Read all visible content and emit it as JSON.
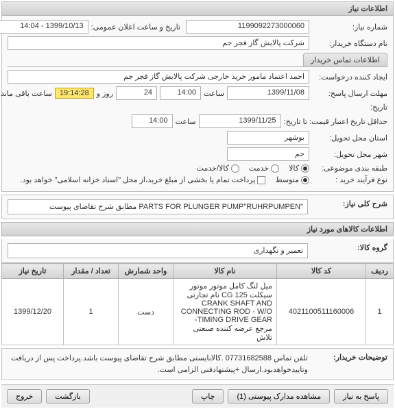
{
  "panel_info": {
    "title": "اطلاعات نیاز",
    "req_no_label": "شماره نیاز:",
    "req_no": "1199092273000060",
    "announce_label": "تاریخ و ساعت اعلان عمومی:",
    "announce_value": "1399/10/13 - 14:04",
    "buyer_label": "نام دستگاه خریدار:",
    "buyer_value": "شرکت پالایش گاز فجر جم",
    "tab_label": "اطلاعات تماس خریدار",
    "creator_label": "ایجاد کننده درخواست:",
    "creator_value": "احمد اعتماد مامور خرید خارجی شرکت پالایش گاز فجر جم",
    "deadline_label": "مهلت ارسال پاسخ:",
    "deadline_date": "1399/11/08",
    "time_label": "ساعت",
    "deadline_time": "14:00",
    "days_count": "24",
    "days_suffix": "روز و",
    "countdown": "19:14:28",
    "remain_suffix": "ساعت باقی مانده",
    "hist_label": "تاریخ:",
    "validity_label": "حداقل تاریخ اعتبار قیمت: تا تاریخ:",
    "validity_date": "1399/11/25",
    "validity_time": "14:00",
    "deliver_prov_label": "استان محل تحویل:",
    "deliver_prov": "بوشهر",
    "deliver_city_label": "شهر محل تحویل:",
    "deliver_city": "جم",
    "category_label": "طبقه بندی موضوعی:",
    "cat_goods": "کالا",
    "cat_service": "خدمت",
    "cat_goods_service": "کالا/خدمت",
    "process_label": "نوع فرآیند خرید :",
    "process_medium": "متوسط",
    "pay_note": "پرداخت تمام یا بخشی از مبلغ خرید،از محل \"اسناد خزانه اسلامی\" خواهد بود."
  },
  "main_desc": {
    "label": "شرح کلی نیاز:",
    "value": "\"PARTS FOR PLUNGER PUMP\"RUHRPUMPEN مطابق شرح تقاضای پیوست"
  },
  "goods_section": {
    "title": "اطلاعات کالاهای مورد نیاز",
    "group_label": "گروه کالا:",
    "group_value": "تعمیر و نگهداری"
  },
  "table": {
    "columns": [
      "ردیف",
      "کد کالا",
      "نام کالا",
      "واحد شمارش",
      "تعداد / مقدار",
      "تاریخ نیاز"
    ],
    "col_widths": [
      "40px",
      "130px",
      "auto",
      "80px",
      "80px",
      "90px"
    ],
    "rows": [
      {
        "idx": "1",
        "code": "4021100511160006",
        "name": "میل لنگ کامل موتور موتور سیکلت CG 125 نام تجارتی CRANK SHAFT AND CONNECTING ROD - W/O TIMING DRIVE GEAR- مرجع عرضه کننده صنعتی تلاش",
        "unit": "دست",
        "qty": "1",
        "date": "1399/12/20"
      }
    ]
  },
  "buyer_note": {
    "label": "توضیحات خریدار:",
    "value": "تلفن تماس 07731682588 .کالابایستی مطابق شرح تقاضای پیوست باشد.پرداخت پس از دریافت وتاییدخواهدبود.ارسال +پیشنهادفنی الزامی است."
  },
  "buttons": {
    "reply": "پاسخ به نیاز",
    "attachments": "مشاهده مدارک پیوستی (1)",
    "print": "چاپ",
    "back": "بازگشت",
    "exit": "خروج"
  },
  "colors": {
    "header_grad_top": "#e8e8e8",
    "header_grad_bot": "#d0d0d0",
    "border": "#b0b0b0",
    "badge_bg": "#ffe66d"
  }
}
